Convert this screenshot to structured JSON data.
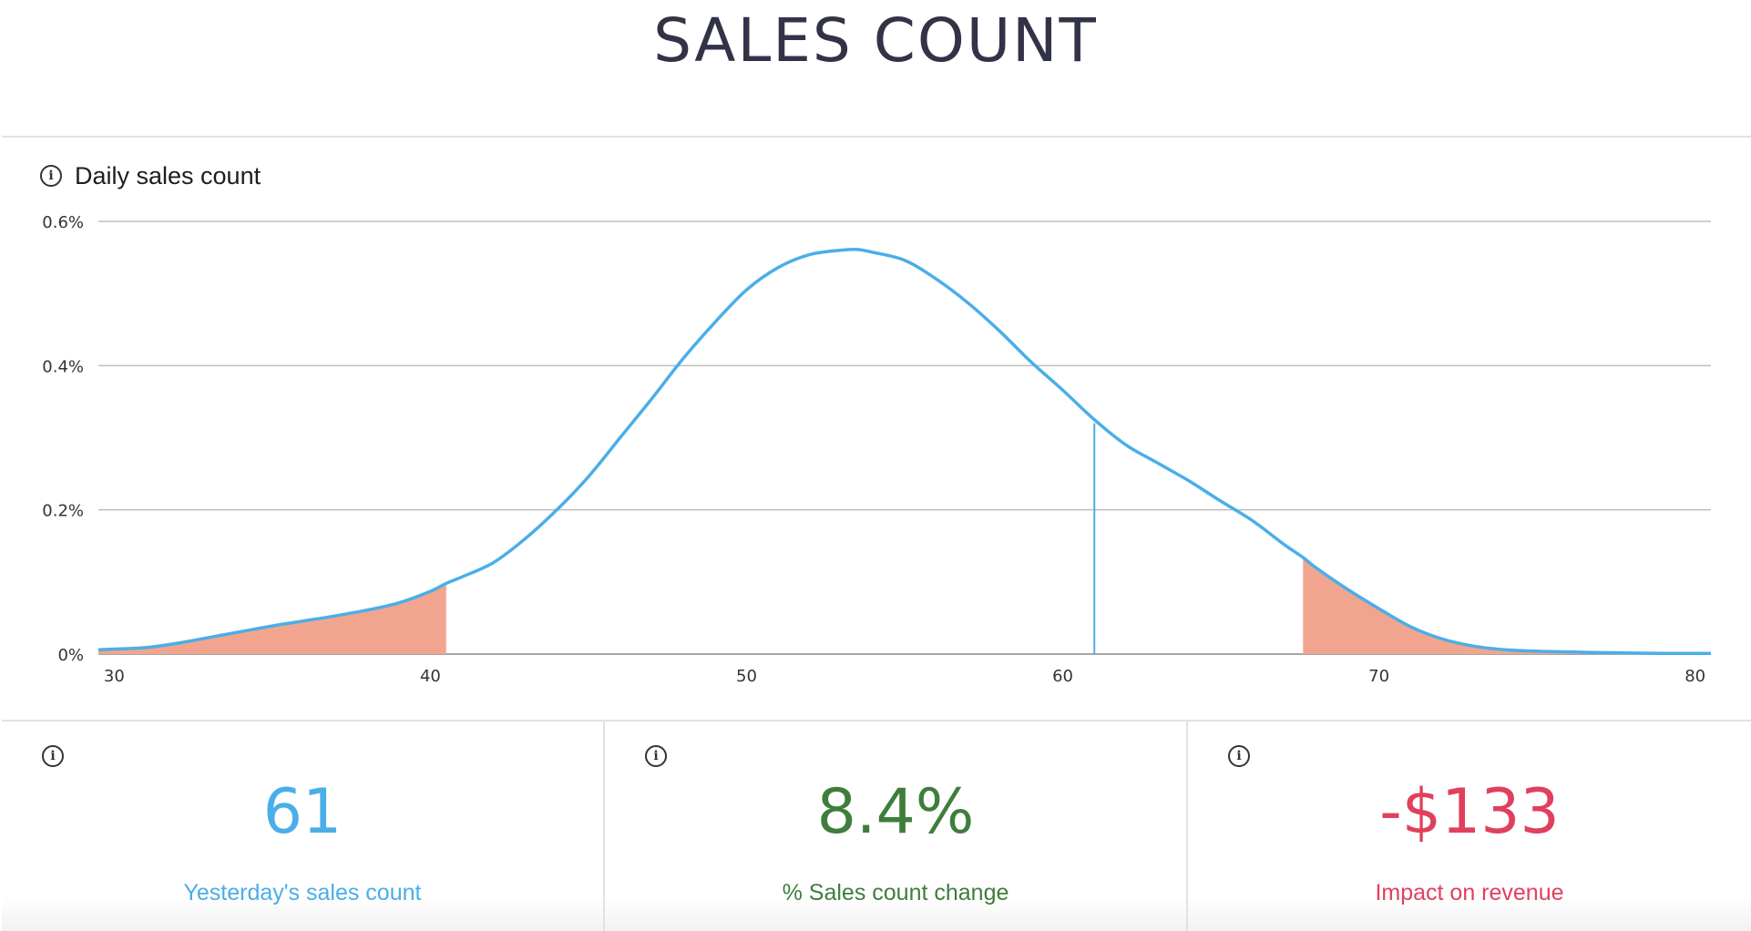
{
  "page": {
    "title": "SALES COUNT"
  },
  "panel": {
    "title": "Daily sales count",
    "info_icon": "info-icon"
  },
  "chart_data": {
    "type": "area",
    "title": "",
    "xlabel": "",
    "ylabel": "",
    "xlim": [
      29.5,
      80.5
    ],
    "ylim": [
      0,
      0.6
    ],
    "x_ticks": [
      30,
      40,
      50,
      60,
      70,
      80
    ],
    "y_ticks": [
      0,
      0.2,
      0.4,
      0.6
    ],
    "y_tick_labels": [
      "0%",
      "0.2%",
      "0.4%",
      "0.6%"
    ],
    "grid": true,
    "line_color": "#4aaee8",
    "tail_fill_color": "#f2a58e",
    "series": [
      {
        "x": [
          29.5,
          31,
          32,
          33,
          34,
          35,
          36,
          37,
          38,
          39,
          40,
          40.5,
          41,
          42,
          43,
          44,
          45,
          46,
          47,
          48,
          49,
          50,
          51,
          52,
          53,
          53.5,
          54,
          55,
          56,
          57,
          58,
          59,
          60,
          61,
          62,
          63,
          64,
          65,
          66,
          67,
          67.6,
          68,
          69,
          70,
          71,
          72,
          73,
          74,
          75,
          76,
          77,
          78,
          79,
          80,
          80.5
        ],
        "y": [
          0.006,
          0.009,
          0.015,
          0.023,
          0.031,
          0.039,
          0.046,
          0.053,
          0.061,
          0.071,
          0.087,
          0.098,
          0.107,
          0.127,
          0.16,
          0.2,
          0.246,
          0.3,
          0.354,
          0.41,
          0.46,
          0.505,
          0.536,
          0.554,
          0.56,
          0.561,
          0.557,
          0.546,
          0.52,
          0.487,
          0.448,
          0.405,
          0.366,
          0.325,
          0.29,
          0.265,
          0.24,
          0.212,
          0.185,
          0.152,
          0.134,
          0.12,
          0.09,
          0.063,
          0.038,
          0.021,
          0.011,
          0.006,
          0.004,
          0.003,
          0.002,
          0.0015,
          0.001,
          0.001,
          0.001
        ]
      }
    ],
    "shaded_regions": [
      {
        "from": 29.5,
        "to": 40.5
      },
      {
        "from": 67.6,
        "to": 80.5
      }
    ],
    "marker": {
      "x": 61,
      "y": 0.32
    }
  },
  "metrics": [
    {
      "value": "61",
      "label": "Yesterday's sales count",
      "color": "#4aaee8",
      "icon": "info-icon"
    },
    {
      "value": "8.4%",
      "label": "% Sales count change",
      "color": "#3f7d3c",
      "icon": "info-icon"
    },
    {
      "value": "-$133",
      "label": "Impact on revenue",
      "color": "#e0405e",
      "icon": "info-icon"
    }
  ]
}
